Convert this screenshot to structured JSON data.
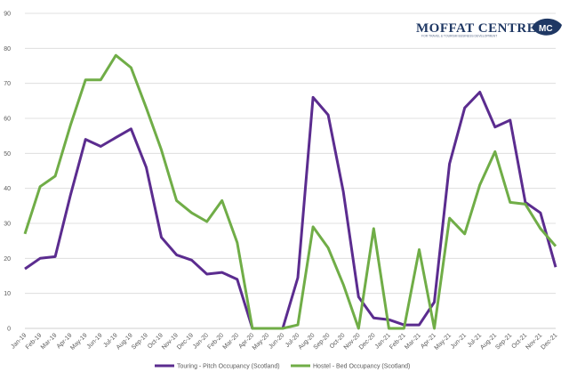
{
  "logo": {
    "name": "MOFFAT CENTRE",
    "tagline": "FOR TRAVEL & TOURISM BUSINESS DEVELOPMENT",
    "badge": "MC"
  },
  "chart_data": {
    "type": "line",
    "title": "",
    "xlabel": "",
    "ylabel": "",
    "ylim": [
      0,
      90
    ],
    "yticks": [
      0,
      10,
      20,
      30,
      40,
      50,
      60,
      70,
      80,
      90
    ],
    "grid": true,
    "legend_position": "bottom",
    "categories": [
      "Jan-19",
      "Feb-19",
      "Mar-19",
      "Apr-19",
      "May-19",
      "Jun-19",
      "Jul-19",
      "Aug-19",
      "Sep-19",
      "Oct-19",
      "Nov-19",
      "Dec-19",
      "Jan-20",
      "Feb-20",
      "Mar-20",
      "Apr-20",
      "May-20",
      "Jun-20",
      "Jul-20",
      "Aug-20",
      "Sep-20",
      "Oct-20",
      "Nov-20",
      "Dec-20",
      "Jan-21",
      "Feb-21",
      "Mar-21",
      "Apr-21",
      "May-21",
      "Jun-21",
      "Jul-21",
      "Aug-21",
      "Sep-21",
      "Oct-21",
      "Nov-21",
      "Dec-21"
    ],
    "series": [
      {
        "name": "Touring - Pitch Occupancy (Scotland)",
        "color": "#5b2c8f",
        "values": [
          17,
          20,
          20.5,
          38,
          54,
          52,
          54.5,
          57,
          46,
          26,
          21,
          19.5,
          15.5,
          16,
          14,
          0,
          0,
          0,
          14.5,
          66,
          61,
          39,
          9,
          3,
          2.5,
          1,
          1,
          7.5,
          47,
          63,
          67.5,
          57.5,
          59.5,
          36,
          33,
          17.5
        ]
      },
      {
        "name": "Hostel - Bed Occupancy (Scotland)",
        "color": "#70ad47",
        "values": [
          27,
          40.5,
          43.5,
          58,
          71,
          71,
          78,
          74.5,
          63,
          51,
          36.5,
          33,
          30.5,
          36.5,
          24.5,
          0,
          0,
          0,
          1,
          29,
          23,
          12.5,
          0,
          28.5,
          0,
          0,
          22.5,
          0,
          31.5,
          27,
          41,
          50.5,
          36,
          35.5,
          28.5,
          23.5
        ]
      }
    ]
  }
}
